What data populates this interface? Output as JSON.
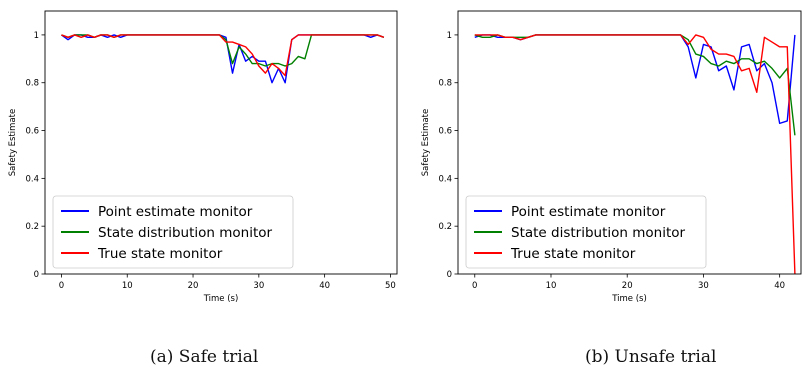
{
  "figure": {
    "captions": [
      "(a) Safe trial",
      "(b) Unsafe trial"
    ]
  },
  "chart_data": [
    {
      "type": "line",
      "panel": "a",
      "title": "",
      "xlabel": "Time (s)",
      "ylabel": "Safety Estimate",
      "xlim": [
        -2.5,
        51
      ],
      "ylim": [
        0.0,
        1.1
      ],
      "xticks": [
        0,
        10,
        20,
        30,
        40,
        50
      ],
      "yticks": [
        0.0,
        0.2,
        0.4,
        0.6,
        0.8,
        1.0
      ],
      "grid": false,
      "legend": "lower-left",
      "series": [
        {
          "name": "Point estimate monitor",
          "color": "#0000ff",
          "x": [
            0,
            1,
            2,
            3,
            4,
            5,
            6,
            7,
            8,
            9,
            10,
            11,
            12,
            13,
            14,
            15,
            16,
            17,
            18,
            19,
            20,
            21,
            22,
            23,
            24,
            25,
            26,
            27,
            28,
            29,
            30,
            31,
            32,
            33,
            34,
            35,
            36,
            37,
            38,
            39,
            40,
            41,
            42,
            43,
            44,
            45,
            46,
            47,
            48,
            49
          ],
          "values": [
            1.0,
            0.98,
            1.0,
            1.0,
            0.99,
            0.99,
            1.0,
            0.99,
            1.0,
            0.99,
            1.0,
            1.0,
            1.0,
            1.0,
            1.0,
            1.0,
            1.0,
            1.0,
            1.0,
            1.0,
            1.0,
            1.0,
            1.0,
            1.0,
            1.0,
            0.99,
            0.84,
            0.96,
            0.89,
            0.91,
            0.89,
            0.89,
            0.8,
            0.86,
            0.8,
            0.98,
            1.0,
            1.0,
            1.0,
            1.0,
            1.0,
            1.0,
            1.0,
            1.0,
            1.0,
            1.0,
            1.0,
            0.99,
            1.0,
            0.99
          ]
        },
        {
          "name": "State distribution monitor",
          "color": "#008000",
          "x": [
            0,
            1,
            2,
            3,
            4,
            5,
            6,
            7,
            8,
            9,
            10,
            11,
            12,
            13,
            14,
            15,
            16,
            17,
            18,
            19,
            20,
            21,
            22,
            23,
            24,
            25,
            26,
            27,
            28,
            29,
            30,
            31,
            32,
            33,
            34,
            35,
            36,
            37,
            38,
            39,
            40,
            41,
            42,
            43,
            44,
            45,
            46,
            47,
            48,
            49
          ],
          "values": [
            1.0,
            0.99,
            1.0,
            1.0,
            1.0,
            0.99,
            1.0,
            1.0,
            0.99,
            1.0,
            1.0,
            1.0,
            1.0,
            1.0,
            1.0,
            1.0,
            1.0,
            1.0,
            1.0,
            1.0,
            1.0,
            1.0,
            1.0,
            1.0,
            1.0,
            0.98,
            0.88,
            0.95,
            0.92,
            0.88,
            0.88,
            0.87,
            0.88,
            0.88,
            0.87,
            0.88,
            0.91,
            0.9,
            1.0,
            1.0,
            1.0,
            1.0,
            1.0,
            1.0,
            1.0,
            1.0,
            1.0,
            1.0,
            1.0,
            0.99
          ]
        },
        {
          "name": "True state monitor",
          "color": "#ff0000",
          "x": [
            0,
            1,
            2,
            3,
            4,
            5,
            6,
            7,
            8,
            9,
            10,
            11,
            12,
            13,
            14,
            15,
            16,
            17,
            18,
            19,
            20,
            21,
            22,
            23,
            24,
            25,
            26,
            27,
            28,
            29,
            30,
            31,
            32,
            33,
            34,
            35,
            36,
            37,
            38,
            39,
            40,
            41,
            42,
            43,
            44,
            45,
            46,
            47,
            48,
            49
          ],
          "values": [
            1.0,
            0.99,
            1.0,
            0.99,
            1.0,
            0.99,
            1.0,
            1.0,
            0.99,
            1.0,
            1.0,
            1.0,
            1.0,
            1.0,
            1.0,
            1.0,
            1.0,
            1.0,
            1.0,
            1.0,
            1.0,
            1.0,
            1.0,
            1.0,
            1.0,
            0.97,
            0.97,
            0.96,
            0.95,
            0.92,
            0.87,
            0.84,
            0.88,
            0.86,
            0.83,
            0.98,
            1.0,
            1.0,
            1.0,
            1.0,
            1.0,
            1.0,
            1.0,
            1.0,
            1.0,
            1.0,
            1.0,
            1.0,
            1.0,
            0.99
          ]
        }
      ]
    },
    {
      "type": "line",
      "panel": "b",
      "title": "",
      "xlabel": "Time (s)",
      "ylabel": "Safety Estimate",
      "xlim": [
        -2.2,
        42.8
      ],
      "ylim": [
        0.0,
        1.1
      ],
      "xticks": [
        0,
        10,
        20,
        30,
        40
      ],
      "yticks": [
        0.0,
        0.2,
        0.4,
        0.6,
        0.8,
        1.0
      ],
      "grid": false,
      "legend": "lower-left",
      "series": [
        {
          "name": "Point estimate monitor",
          "color": "#0000ff",
          "x": [
            0,
            1,
            2,
            3,
            4,
            5,
            6,
            7,
            8,
            9,
            10,
            11,
            12,
            13,
            14,
            15,
            16,
            17,
            18,
            19,
            20,
            21,
            22,
            23,
            24,
            25,
            26,
            27,
            28,
            29,
            30,
            31,
            32,
            33,
            34,
            35,
            36,
            37,
            38,
            39,
            40,
            41,
            42
          ],
          "values": [
            0.99,
            1.0,
            1.0,
            0.99,
            0.99,
            0.99,
            0.98,
            0.99,
            1.0,
            1.0,
            1.0,
            1.0,
            1.0,
            1.0,
            1.0,
            1.0,
            1.0,
            1.0,
            1.0,
            1.0,
            1.0,
            1.0,
            1.0,
            1.0,
            1.0,
            1.0,
            1.0,
            1.0,
            0.95,
            0.82,
            0.96,
            0.95,
            0.85,
            0.87,
            0.77,
            0.95,
            0.96,
            0.85,
            0.88,
            0.8,
            0.63,
            0.64,
            1.0
          ]
        },
        {
          "name": "State distribution monitor",
          "color": "#008000",
          "x": [
            0,
            1,
            2,
            3,
            4,
            5,
            6,
            7,
            8,
            9,
            10,
            11,
            12,
            13,
            14,
            15,
            16,
            17,
            18,
            19,
            20,
            21,
            22,
            23,
            24,
            25,
            26,
            27,
            28,
            29,
            30,
            31,
            32,
            33,
            34,
            35,
            36,
            37,
            38,
            39,
            40,
            41,
            42
          ],
          "values": [
            1.0,
            0.99,
            0.99,
            1.0,
            0.99,
            0.99,
            0.99,
            0.99,
            1.0,
            1.0,
            1.0,
            1.0,
            1.0,
            1.0,
            1.0,
            1.0,
            1.0,
            1.0,
            1.0,
            1.0,
            1.0,
            1.0,
            1.0,
            1.0,
            1.0,
            1.0,
            1.0,
            1.0,
            0.98,
            0.92,
            0.91,
            0.88,
            0.87,
            0.89,
            0.88,
            0.9,
            0.9,
            0.88,
            0.89,
            0.86,
            0.82,
            0.86,
            0.58
          ]
        },
        {
          "name": "True state monitor",
          "color": "#ff0000",
          "x": [
            0,
            1,
            2,
            3,
            4,
            5,
            6,
            7,
            8,
            9,
            10,
            11,
            12,
            13,
            14,
            15,
            16,
            17,
            18,
            19,
            20,
            21,
            22,
            23,
            24,
            25,
            26,
            27,
            28,
            29,
            30,
            31,
            32,
            33,
            34,
            35,
            36,
            37,
            38,
            39,
            40,
            41,
            42
          ],
          "values": [
            1.0,
            1.0,
            1.0,
            1.0,
            0.99,
            0.99,
            0.98,
            0.99,
            1.0,
            1.0,
            1.0,
            1.0,
            1.0,
            1.0,
            1.0,
            1.0,
            1.0,
            1.0,
            1.0,
            1.0,
            1.0,
            1.0,
            1.0,
            1.0,
            1.0,
            1.0,
            1.0,
            1.0,
            0.96,
            1.0,
            0.99,
            0.94,
            0.92,
            0.92,
            0.91,
            0.85,
            0.86,
            0.76,
            0.99,
            0.97,
            0.95,
            0.95,
            0.0
          ]
        }
      ]
    }
  ]
}
